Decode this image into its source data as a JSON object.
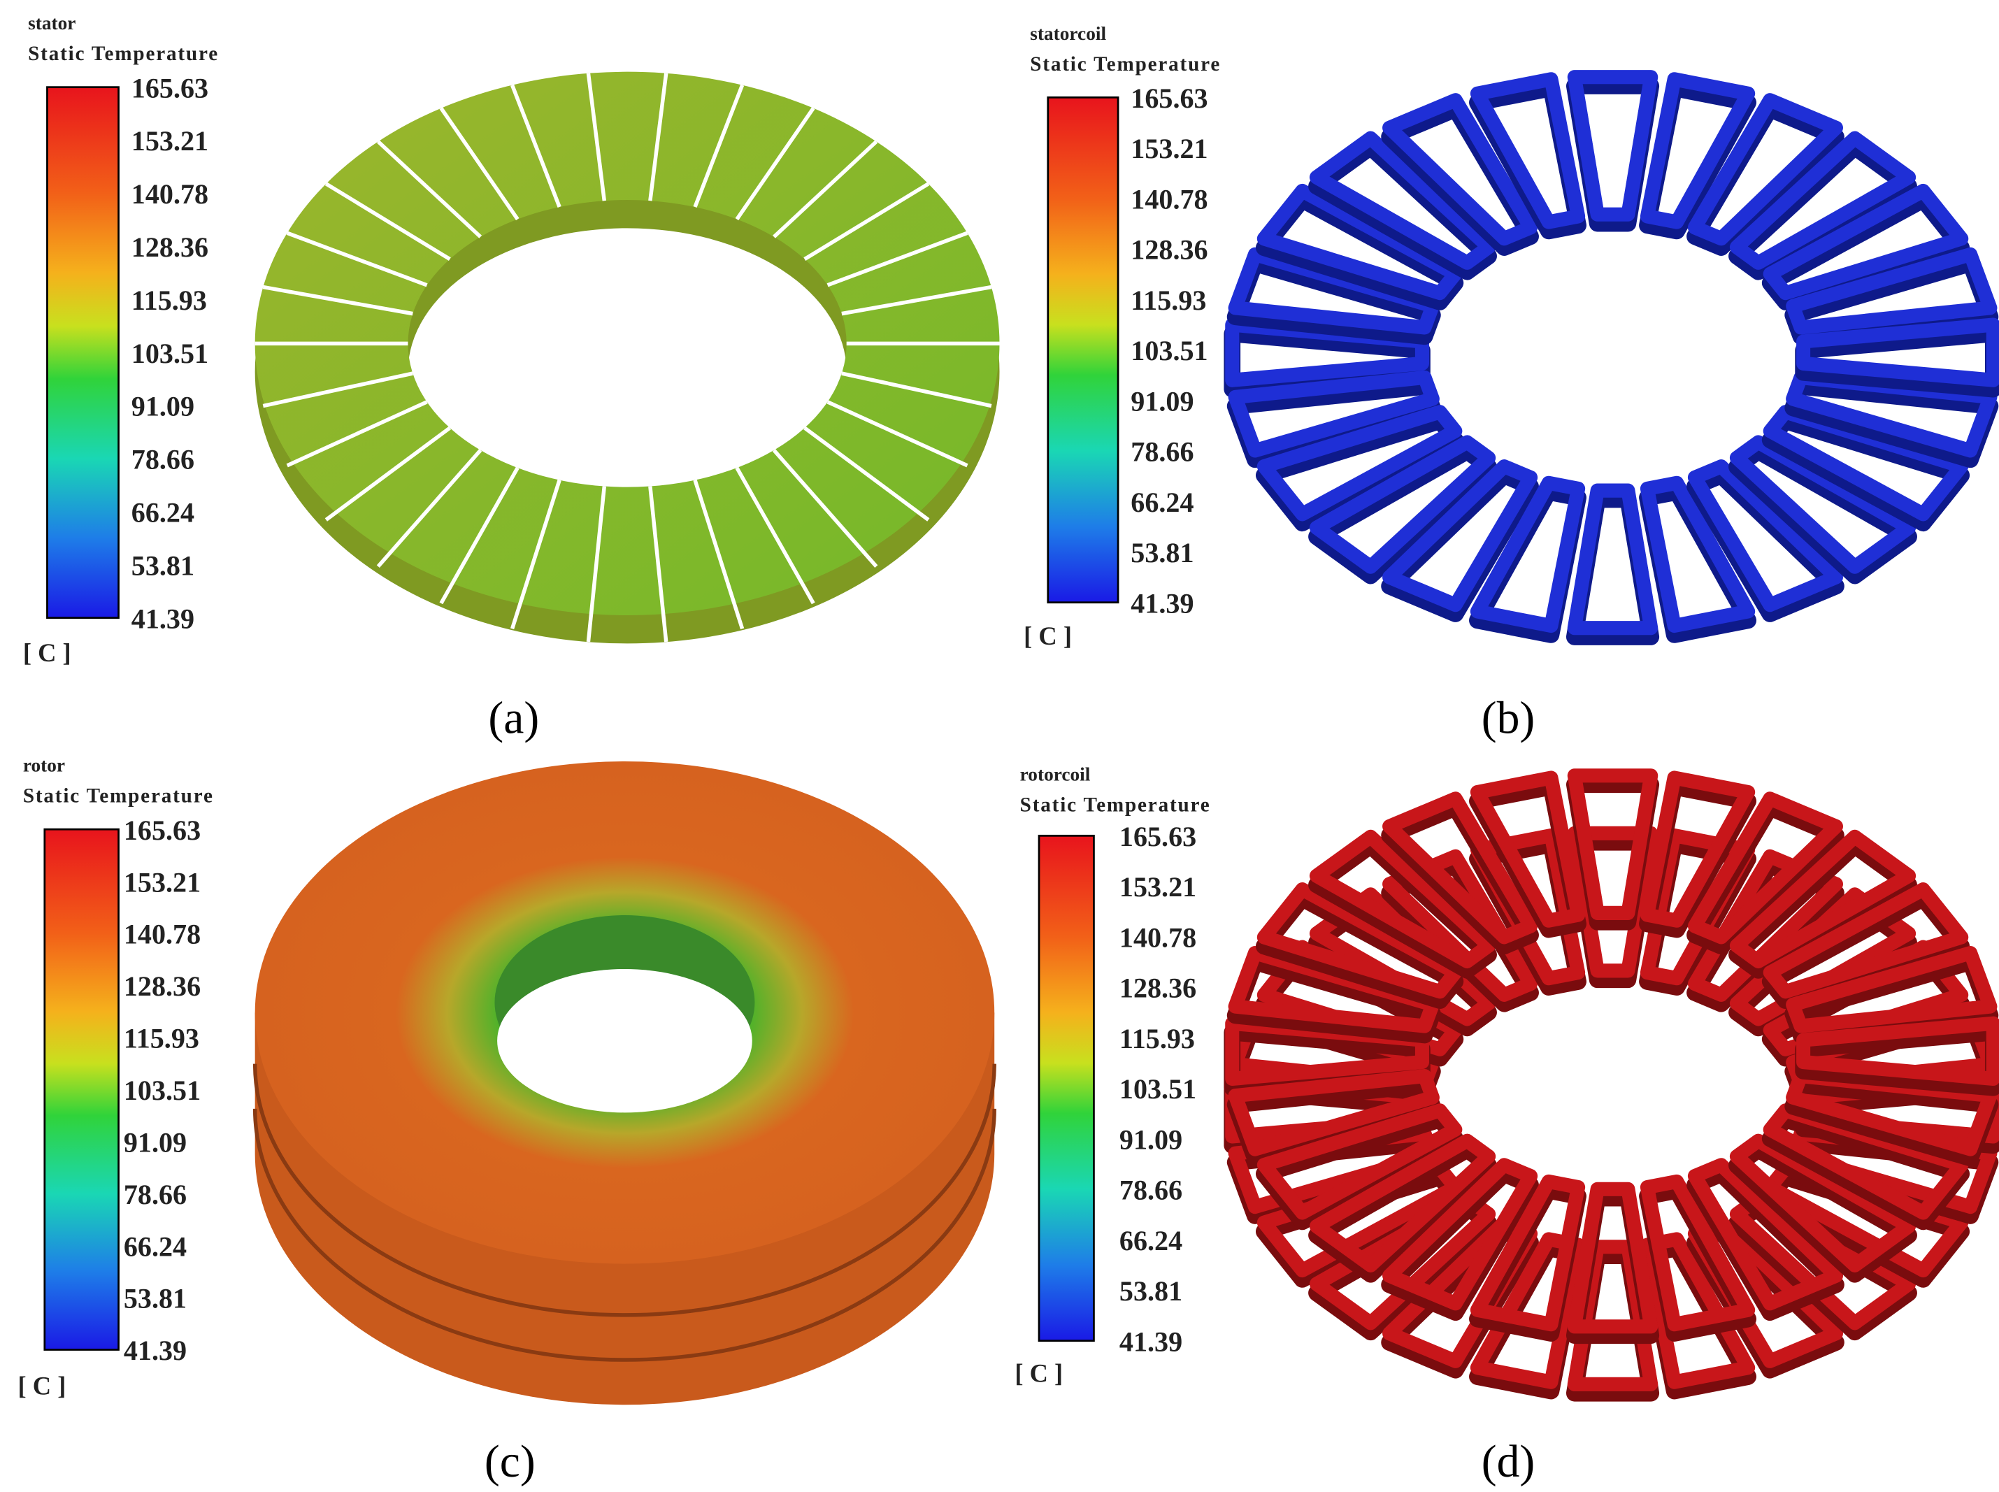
{
  "panels": [
    {
      "part": "stator",
      "variable": "Static Temperature",
      "ticks": [
        165.63,
        153.21,
        140.78,
        128.36,
        115.93,
        103.51,
        91.09,
        78.66,
        66.24,
        53.81,
        41.39
      ],
      "unit": "[ C ]",
      "caption": "(a)"
    },
    {
      "part": "statorcoil",
      "variable": "Static Temperature",
      "ticks": [
        165.63,
        153.21,
        140.78,
        128.36,
        115.93,
        103.51,
        91.09,
        78.66,
        66.24,
        53.81,
        41.39
      ],
      "unit": "[ C ]",
      "caption": "(b)"
    },
    {
      "part": "rotor",
      "variable": "Static Temperature",
      "ticks": [
        165.63,
        153.21,
        140.78,
        128.36,
        115.93,
        103.51,
        91.09,
        78.66,
        66.24,
        53.81,
        41.39
      ],
      "unit": "[ C ]",
      "caption": "(c)"
    },
    {
      "part": "rotorcoil",
      "variable": "Static Temperature",
      "ticks": [
        165.63,
        153.21,
        140.78,
        128.36,
        115.93,
        103.51,
        91.09,
        78.66,
        66.24,
        53.81,
        41.39
      ],
      "unit": "[ C ]",
      "caption": "(d)"
    }
  ]
}
